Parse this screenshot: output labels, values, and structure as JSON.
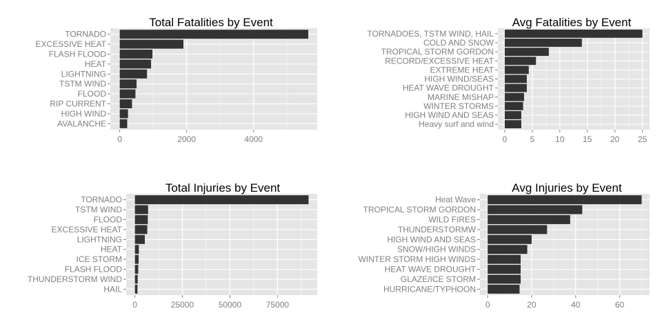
{
  "colors": {
    "panel": "#e5e5e5",
    "grid_major": "#ffffff",
    "grid_minor": "#f2f2f2",
    "bar": "#333333",
    "tick_text": "#7f7f7f"
  },
  "chart_data": [
    {
      "type": "bar",
      "orientation": "horizontal",
      "title": "Total Fatalities by Event",
      "categories": [
        "TORNADO",
        "EXCESSIVE HEAT",
        "FLASH FLOOD",
        "HEAT",
        "LIGHTNING",
        "TSTM WIND",
        "FLOOD",
        "RIP CURRENT",
        "HIGH WIND",
        "AVALANCHE"
      ],
      "values": [
        5633,
        1903,
        978,
        937,
        816,
        504,
        470,
        368,
        248,
        224
      ],
      "xlim": [
        -280,
        5900
      ],
      "ticks": [
        0,
        2000,
        4000
      ],
      "tick_labels": [
        "0",
        "2000",
        "4000"
      ],
      "grid": true
    },
    {
      "type": "bar",
      "orientation": "horizontal",
      "title": "Avg Fatalities by Event",
      "categories": [
        "TORNADOES, TSTM WIND, HAIL",
        "COLD AND SNOW",
        "TROPICAL STORM GORDON",
        "RECORD/EXCESSIVE HEAT",
        "EXTREME HEAT",
        "HIGH WIND/SEAS",
        "HEAT WAVE DROUGHT",
        "MARINE MISHAP",
        "WINTER STORMS",
        "HIGH WIND AND SEAS",
        "Heavy surf and wind"
      ],
      "values": [
        25,
        14,
        8,
        5.67,
        4.36,
        4,
        4,
        3.5,
        3.33,
        3,
        3
      ],
      "xlim": [
        -1.25,
        26.3
      ],
      "ticks": [
        0,
        5,
        10,
        15,
        20,
        25
      ],
      "tick_labels": [
        "0",
        "5",
        "10",
        "15",
        "20",
        "25"
      ],
      "grid": true
    },
    {
      "type": "bar",
      "orientation": "horizontal",
      "title": "Total Injuries by Event",
      "categories": [
        "TORNADO",
        "TSTM WIND",
        "FLOOD",
        "EXCESSIVE HEAT",
        "LIGHTNING",
        "HEAT",
        "ICE STORM",
        "FLASH FLOOD",
        "THUNDERSTORM WIND",
        "HAIL"
      ],
      "values": [
        91346,
        6957,
        6789,
        6525,
        5230,
        2100,
        1975,
        1777,
        1488,
        1361
      ],
      "xlim": [
        -4570,
        95900
      ],
      "ticks": [
        0,
        25000,
        50000,
        75000
      ],
      "tick_labels": [
        "0",
        "25000",
        "50000",
        "75000"
      ],
      "grid": true
    },
    {
      "type": "bar",
      "orientation": "horizontal",
      "title": "Avg Injuries by Event",
      "categories": [
        "Heat Wave",
        "TROPICAL STORM GORDON",
        "WILD FIRES",
        "THUNDERSTORMW",
        "HIGH WIND AND SEAS",
        "SNOW/HIGH WINDS",
        "WINTER STORM HIGH WINDS",
        "HEAT WAVE DROUGHT",
        "GLAZE/ICE STORM",
        "HURRICANE/TYPHOON"
      ],
      "values": [
        70,
        43,
        37.5,
        27,
        20,
        18,
        15,
        15,
        15,
        14.5
      ],
      "xlim": [
        -3.5,
        73.6
      ],
      "ticks": [
        0,
        20,
        40,
        60
      ],
      "tick_labels": [
        "0",
        "20",
        "40",
        "60"
      ],
      "grid": true
    }
  ]
}
